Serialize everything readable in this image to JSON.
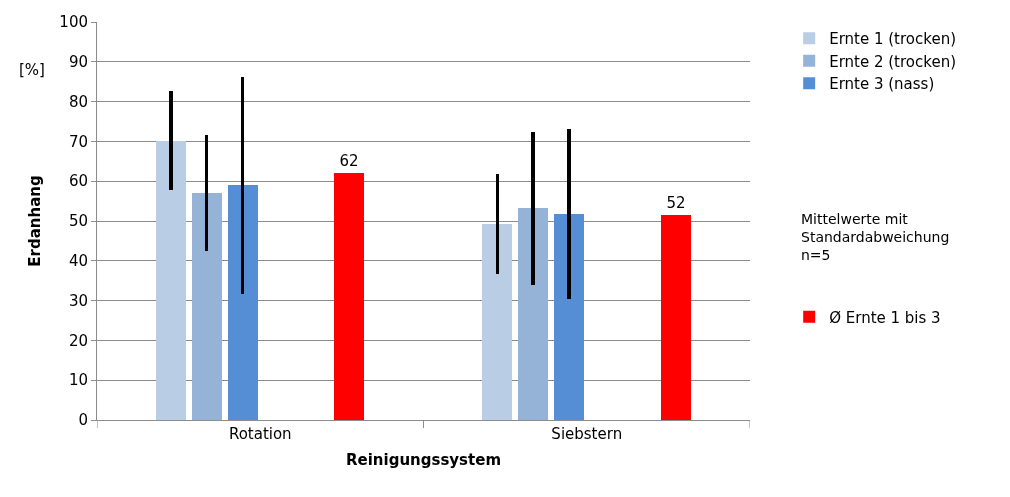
{
  "chart_data": {
    "type": "bar",
    "xlabel": "Reinigungssystem",
    "ylabel": "Erdanhang",
    "categories": [
      "Rotation",
      "Siebstern"
    ],
    "series": [
      {
        "name": "Ernte 1 (trocken)",
        "color": "#b9cde5",
        "values": [
          70.2,
          49.3
        ],
        "errors": [
          12.5,
          12.5
        ]
      },
      {
        "name": "Ernte 2 (trocken)",
        "color": "#95b3d7",
        "values": [
          57,
          53.2
        ],
        "errors": [
          14.5,
          19.2
        ]
      },
      {
        "name": "Ernte 3 (nass)",
        "color": "#558ed5",
        "values": [
          59,
          51.7
        ],
        "errors": [
          27.3,
          21.4
        ]
      },
      {
        "name": "Ø Ernte 1 bis 3",
        "color": "#ff0000",
        "values": [
          62,
          51.6
        ],
        "value_labels": [
          "62",
          "52"
        ]
      }
    ],
    "ylim": [
      0,
      100
    ],
    "yticks": [
      0,
      10,
      20,
      30,
      40,
      50,
      60,
      70,
      80,
      90,
      100
    ],
    "grid": "y",
    "legend": "right",
    "annotations": [
      "[%]",
      "Mittelwerte mit\nStandardabweichung\nn=5"
    ]
  }
}
